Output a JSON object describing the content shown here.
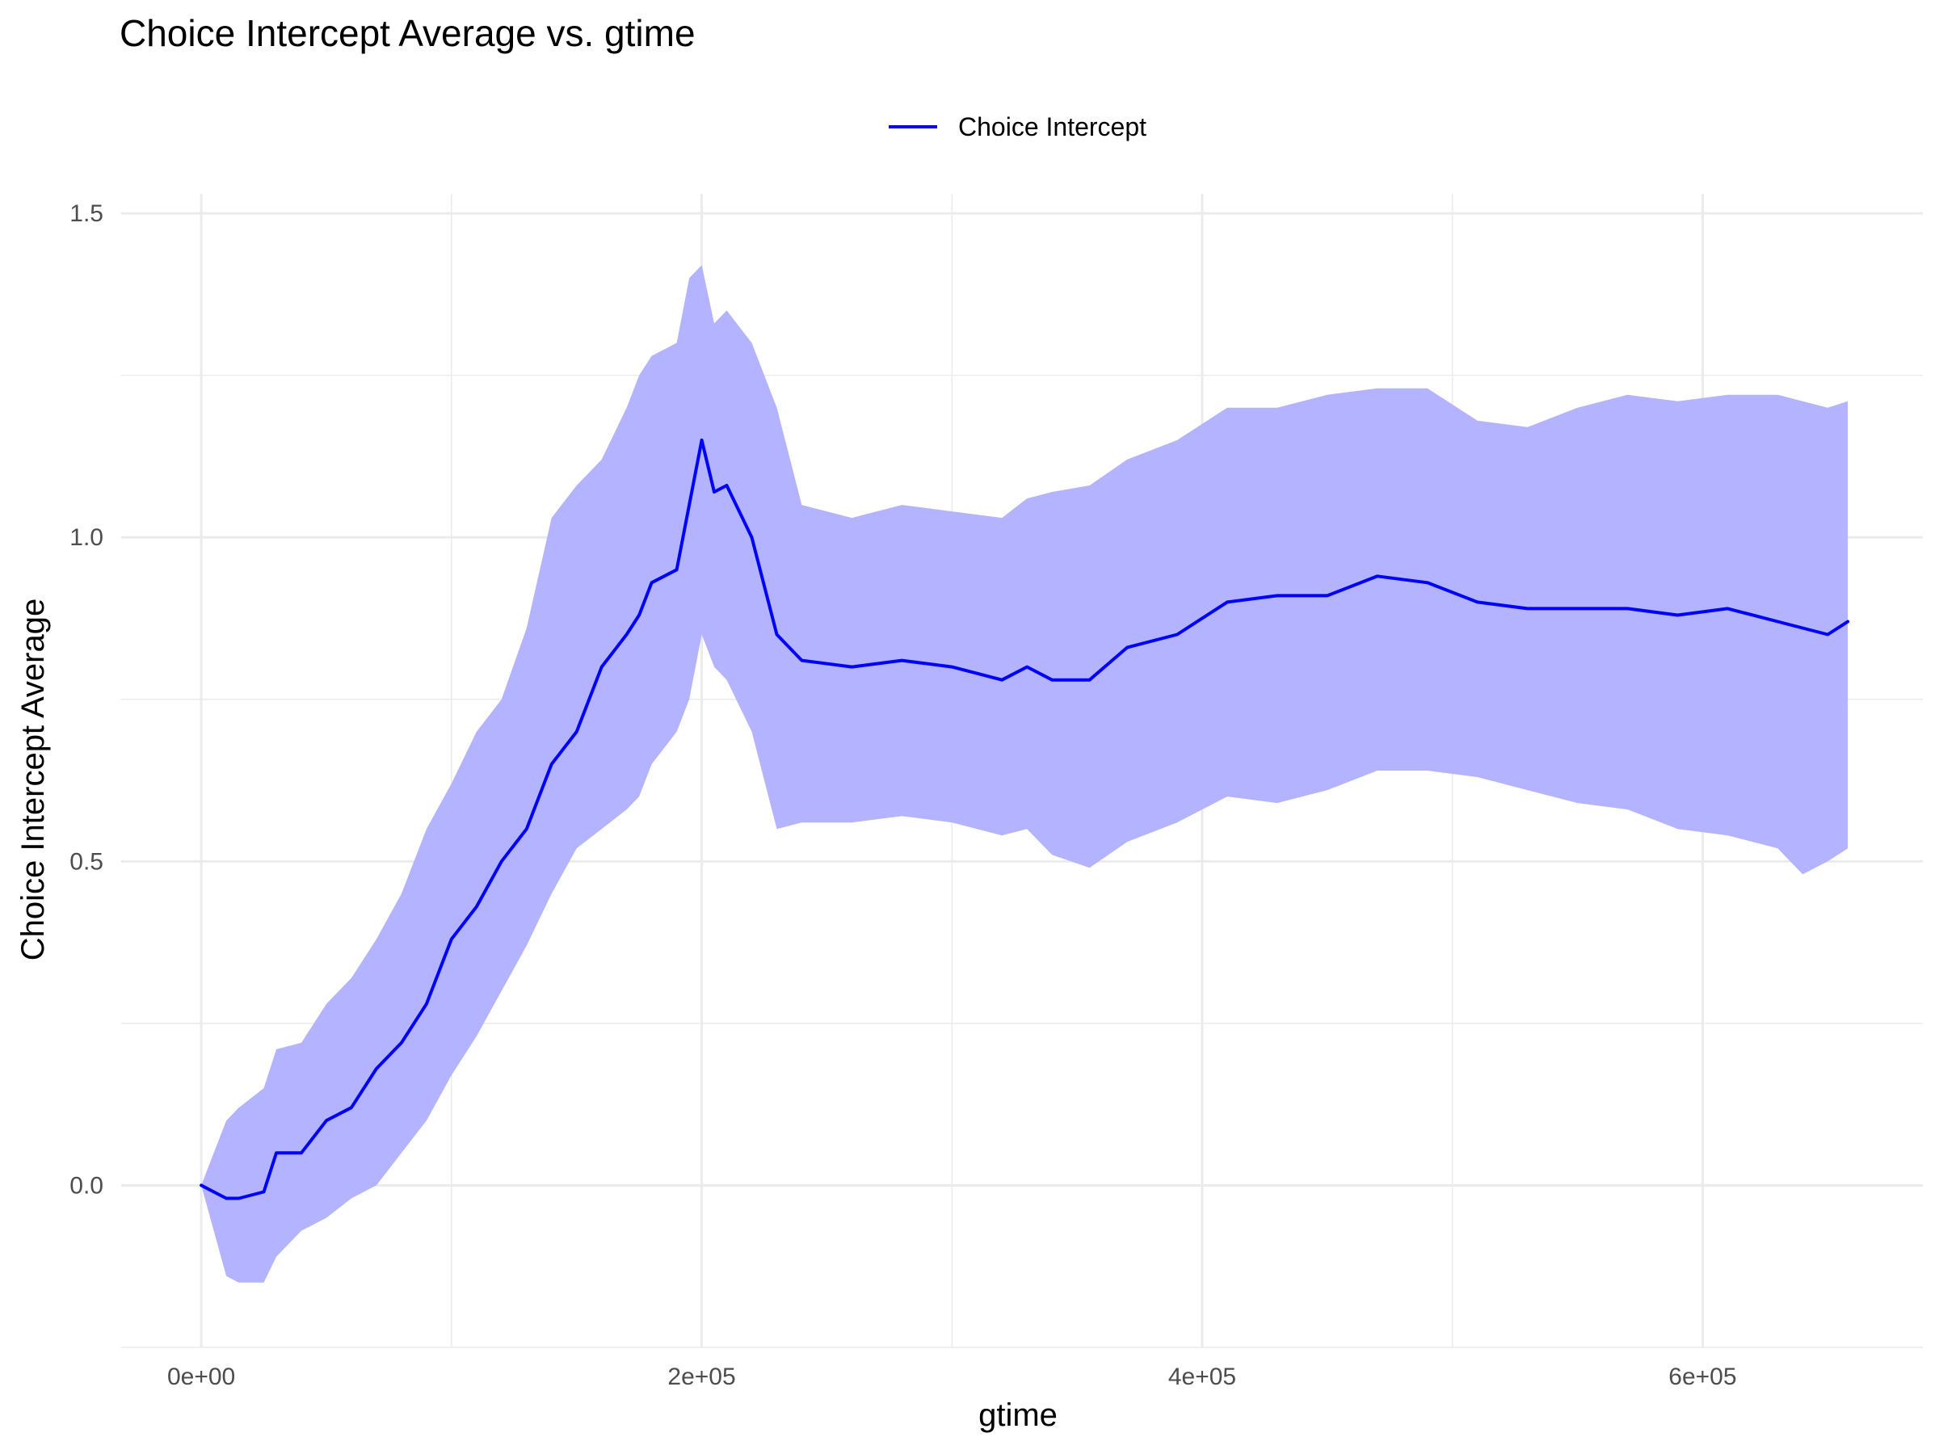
{
  "chart_data": {
    "type": "line",
    "title": "Choice Intercept Average vs. gtime",
    "xlabel": "gtime",
    "ylabel": "Choice Intercept Average",
    "xlim": [
      -32000,
      688000
    ],
    "ylim": [
      -0.25,
      1.53
    ],
    "x_ticks": [
      0,
      200000,
      400000,
      600000
    ],
    "x_tick_labels": [
      "0e+00",
      "2e+05",
      "4e+05",
      "6e+05"
    ],
    "y_ticks": [
      0,
      0.5,
      1.0,
      1.5
    ],
    "y_tick_labels": [
      "0.0",
      "0.5",
      "1.0",
      "1.5"
    ],
    "grid": true,
    "legend_position": "top",
    "colors": {
      "line": "#0000ff",
      "band": "#b3b3ff",
      "grid": "#ebebeb"
    },
    "series": [
      {
        "name": "Choice Intercept",
        "x": [
          0,
          10000,
          15000,
          25000,
          30000,
          40000,
          50000,
          60000,
          70000,
          80000,
          90000,
          100000,
          110000,
          120000,
          130000,
          140000,
          150000,
          160000,
          170000,
          175000,
          180000,
          190000,
          195000,
          200000,
          205000,
          210000,
          220000,
          230000,
          240000,
          260000,
          280000,
          300000,
          320000,
          330000,
          340000,
          355000,
          370000,
          390000,
          410000,
          430000,
          450000,
          470000,
          490000,
          510000,
          530000,
          550000,
          570000,
          590000,
          610000,
          630000,
          640000,
          650000,
          658000
        ],
        "y": [
          0.0,
          -0.02,
          -0.02,
          -0.01,
          0.05,
          0.05,
          0.1,
          0.12,
          0.18,
          0.22,
          0.28,
          0.38,
          0.43,
          0.5,
          0.55,
          0.65,
          0.7,
          0.8,
          0.85,
          0.88,
          0.93,
          0.95,
          1.05,
          1.15,
          1.07,
          1.08,
          1.0,
          0.85,
          0.81,
          0.8,
          0.81,
          0.8,
          0.78,
          0.8,
          0.78,
          0.78,
          0.83,
          0.85,
          0.9,
          0.91,
          0.91,
          0.94,
          0.93,
          0.9,
          0.89,
          0.89,
          0.89,
          0.88,
          0.89,
          0.87,
          0.86,
          0.85,
          0.87
        ],
        "lower": [
          0.0,
          -0.14,
          -0.15,
          -0.15,
          -0.11,
          -0.07,
          -0.05,
          -0.02,
          0.0,
          0.05,
          0.1,
          0.17,
          0.23,
          0.3,
          0.37,
          0.45,
          0.52,
          0.55,
          0.58,
          0.6,
          0.65,
          0.7,
          0.75,
          0.85,
          0.8,
          0.78,
          0.7,
          0.55,
          0.56,
          0.56,
          0.57,
          0.56,
          0.54,
          0.55,
          0.51,
          0.49,
          0.53,
          0.56,
          0.6,
          0.59,
          0.61,
          0.64,
          0.64,
          0.63,
          0.61,
          0.59,
          0.58,
          0.55,
          0.54,
          0.52,
          0.48,
          0.5,
          0.52
        ],
        "upper": [
          0.0,
          0.1,
          0.12,
          0.15,
          0.21,
          0.22,
          0.28,
          0.32,
          0.38,
          0.45,
          0.55,
          0.62,
          0.7,
          0.75,
          0.86,
          1.03,
          1.08,
          1.12,
          1.2,
          1.25,
          1.28,
          1.3,
          1.4,
          1.42,
          1.33,
          1.35,
          1.3,
          1.2,
          1.05,
          1.03,
          1.05,
          1.04,
          1.03,
          1.06,
          1.07,
          1.08,
          1.12,
          1.15,
          1.2,
          1.2,
          1.22,
          1.23,
          1.23,
          1.18,
          1.17,
          1.2,
          1.22,
          1.21,
          1.22,
          1.22,
          1.21,
          1.2,
          1.21
        ]
      }
    ]
  }
}
